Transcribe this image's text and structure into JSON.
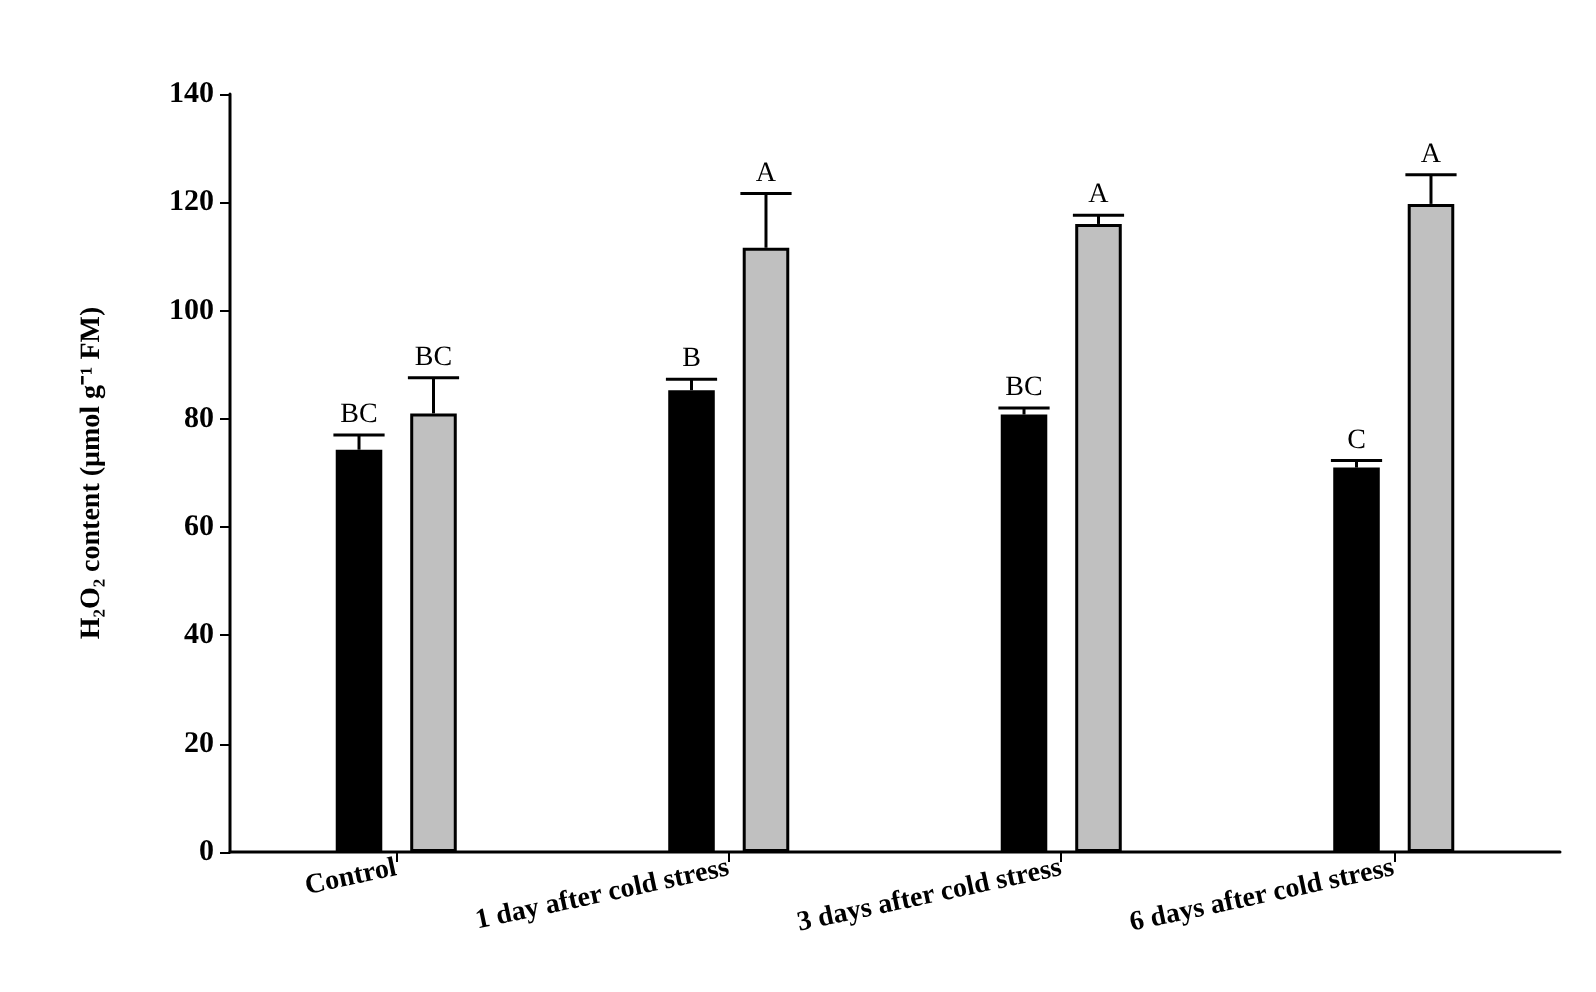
{
  "chart_data": {
    "type": "bar",
    "ylabel": "H₂O₂ content (μmol g⁻¹ FM)",
    "categories": [
      "Control",
      "1 day after cold stress",
      "3 days after cold stress",
      "6 days after cold stress"
    ],
    "series": [
      {
        "color": "#000000",
        "values": [
          74.3,
          85.3,
          80.8,
          71.0
        ],
        "errors": [
          2.7,
          2.0,
          1.2,
          1.3
        ],
        "value_labels": [
          "BC",
          "B",
          "BC",
          "C"
        ]
      },
      {
        "color": "#c0c0c0",
        "values": [
          81.0,
          111.6,
          116.0,
          119.7
        ],
        "errors": [
          6.6,
          10.0,
          1.6,
          5.4
        ],
        "value_labels": [
          "BC",
          "A",
          "A",
          "A"
        ]
      }
    ],
    "ylim": [
      0,
      140
    ],
    "yticks": [
      0,
      20,
      40,
      60,
      80,
      100,
      120,
      140
    ]
  }
}
